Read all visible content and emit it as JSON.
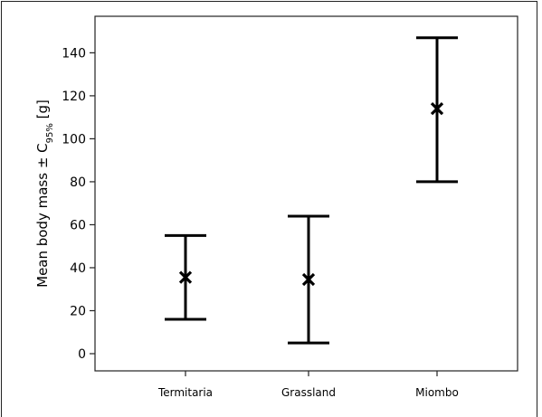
{
  "chart_data": {
    "type": "errorbar",
    "categories": [
      "Termitaria",
      "Grassland",
      "Miombo"
    ],
    "series": [
      {
        "mean": [
          35.5,
          34.5,
          114
        ],
        "lower": [
          16,
          5,
          80
        ],
        "upper": [
          55,
          64,
          147
        ]
      }
    ],
    "ylabel": {
      "main": "Mean body mass ± C",
      "sub": "95%",
      "unit": " [g]"
    },
    "title": "",
    "xlabel": "",
    "ylim": [
      -8,
      157
    ],
    "yticks": [
      0,
      20,
      40,
      60,
      80,
      100,
      120,
      140
    ],
    "grid": false,
    "marker": "x",
    "color": "#000000"
  }
}
